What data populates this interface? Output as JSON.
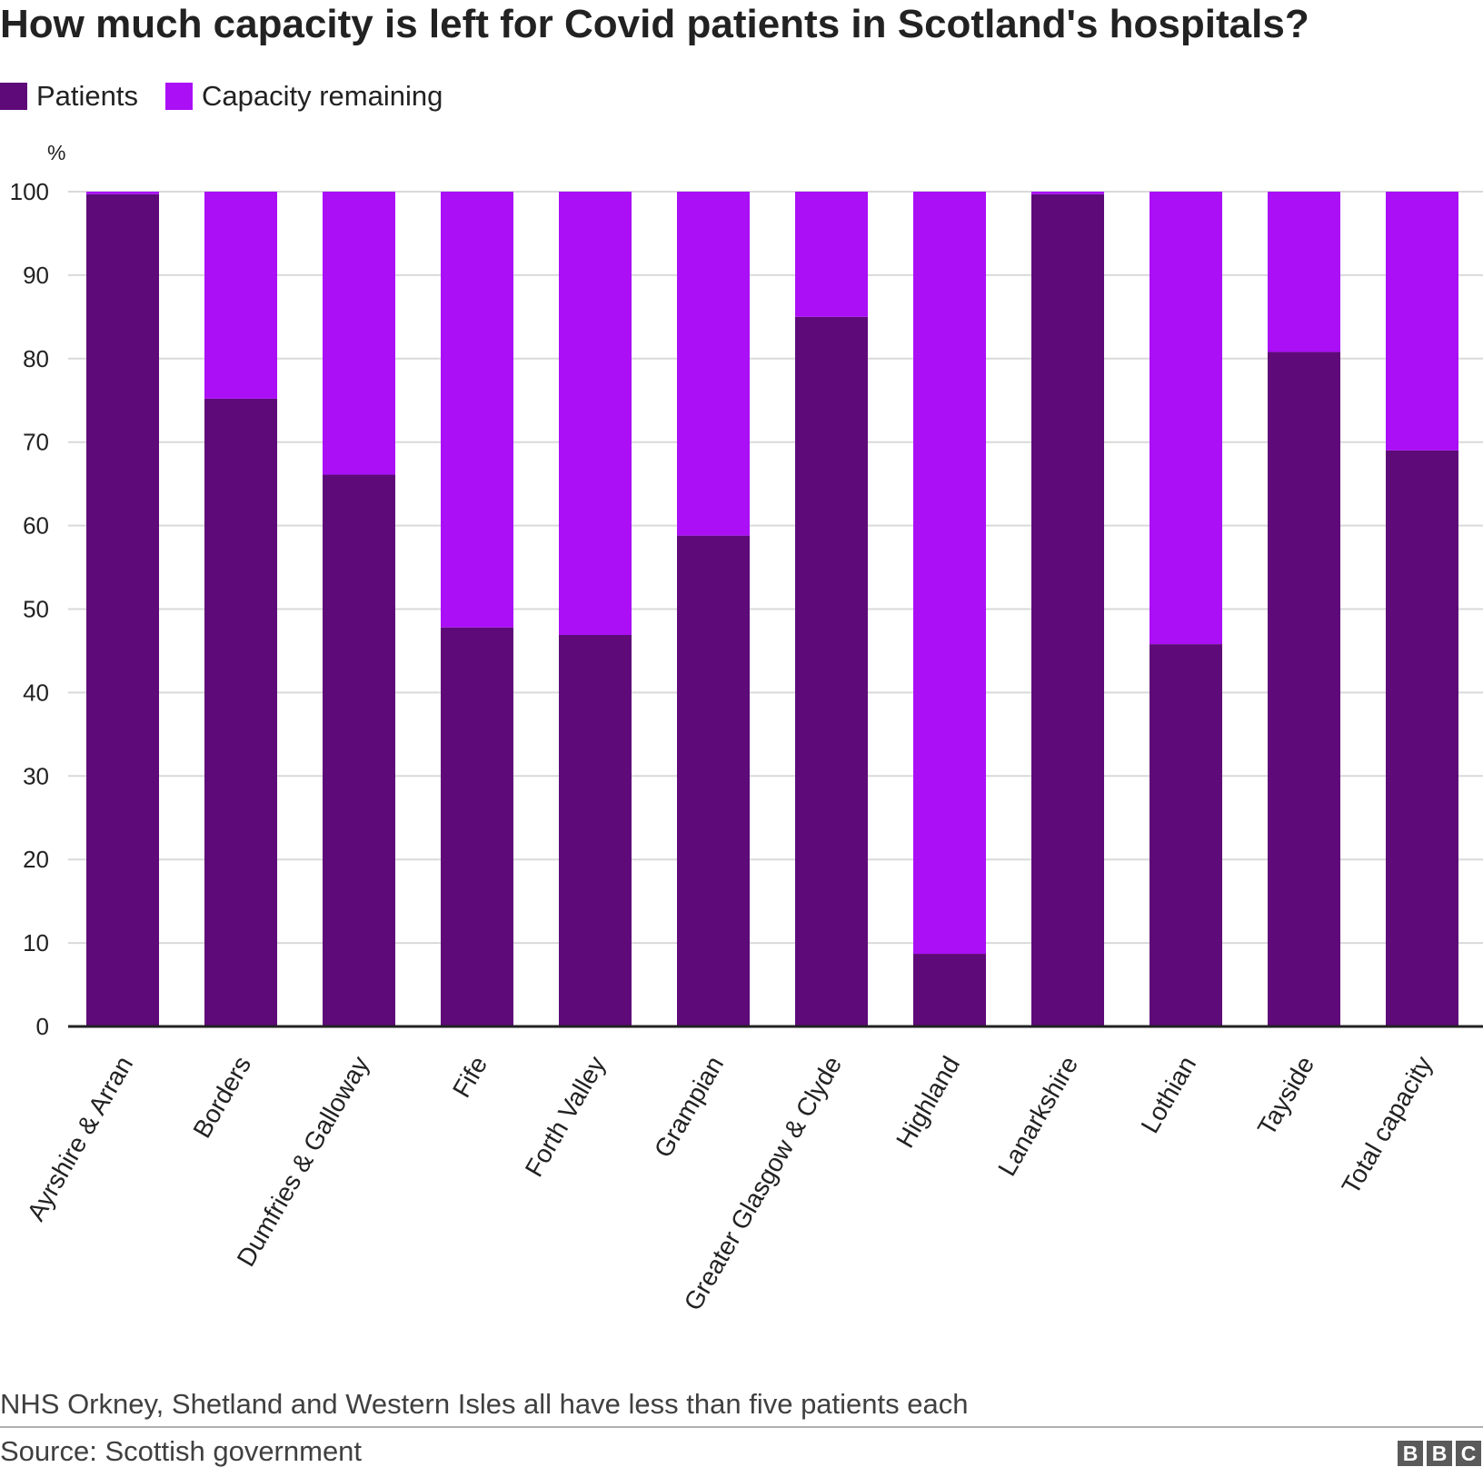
{
  "title": "How much capacity is left for Covid patients in Scotland's hospitals?",
  "legend": [
    {
      "label": "Patients",
      "color": "#5e0a79"
    },
    {
      "label": "Capacity remaining",
      "color": "#aa0ff6"
    }
  ],
  "note": "NHS Orkney, Shetland and Western Isles all have less than five patients each",
  "source": "Source: Scottish government",
  "logo": [
    "B",
    "B",
    "C"
  ],
  "chart_data": {
    "type": "bar",
    "stacked": true,
    "title": "How much capacity is left for Covid patients in Scotland's hospitals?",
    "xlabel": "",
    "ylabel": "%",
    "ylim": [
      0,
      100
    ],
    "yticks": [
      0,
      10,
      20,
      30,
      40,
      50,
      60,
      70,
      80,
      90,
      100
    ],
    "grid": true,
    "legend_position": "top-left",
    "categories": [
      "Ayrshire & Arran",
      "Borders",
      "Dumfries & Galloway",
      "Fife",
      "Forth Valley",
      "Grampian",
      "Greater Glasgow & Clyde",
      "Highland",
      "Lanarkshire",
      "Lothian",
      "Tayside",
      "Total capacity"
    ],
    "series": [
      {
        "name": "Patients",
        "color": "#5e0a79",
        "values": [
          99.7,
          75.2,
          66.1,
          47.8,
          46.9,
          58.8,
          85.0,
          8.7,
          99.7,
          45.8,
          80.8,
          69.0
        ]
      },
      {
        "name": "Capacity remaining",
        "color": "#aa0ff6",
        "values": [
          0.3,
          24.8,
          33.9,
          52.2,
          53.1,
          41.2,
          15.0,
          91.3,
          0.3,
          54.2,
          19.2,
          31.0
        ]
      }
    ]
  }
}
